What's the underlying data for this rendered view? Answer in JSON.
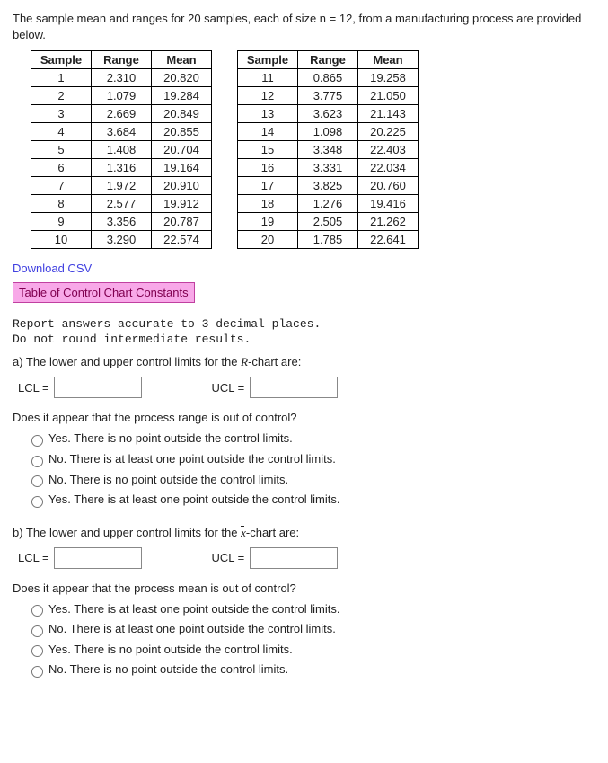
{
  "intro": "The sample mean and ranges for 20 samples, each of size n = 12, from a manufacturing process are provided below.",
  "table_headers": [
    "Sample",
    "Range",
    "Mean"
  ],
  "table_left": [
    [
      "1",
      "2.310",
      "20.820"
    ],
    [
      "2",
      "1.079",
      "19.284"
    ],
    [
      "3",
      "2.669",
      "20.849"
    ],
    [
      "4",
      "3.684",
      "20.855"
    ],
    [
      "5",
      "1.408",
      "20.704"
    ],
    [
      "6",
      "1.316",
      "19.164"
    ],
    [
      "7",
      "1.972",
      "20.910"
    ],
    [
      "8",
      "2.577",
      "19.912"
    ],
    [
      "9",
      "3.356",
      "20.787"
    ],
    [
      "10",
      "3.290",
      "22.574"
    ]
  ],
  "table_right": [
    [
      "11",
      "0.865",
      "19.258"
    ],
    [
      "12",
      "3.775",
      "21.050"
    ],
    [
      "13",
      "3.623",
      "21.143"
    ],
    [
      "14",
      "1.098",
      "20.225"
    ],
    [
      "15",
      "3.348",
      "22.403"
    ],
    [
      "16",
      "3.331",
      "22.034"
    ],
    [
      "17",
      "3.825",
      "20.760"
    ],
    [
      "18",
      "1.276",
      "19.416"
    ],
    [
      "19",
      "2.505",
      "21.262"
    ],
    [
      "20",
      "1.785",
      "22.641"
    ]
  ],
  "download_label": "Download CSV",
  "constants_label": "Table of Control Chart Constants",
  "note1": "Report answers accurate to 3 decimal places.",
  "note2": "Do not round intermediate results.",
  "partA": {
    "prompt_pre": "a) The lower and upper control limits for the ",
    "prompt_var": "R",
    "prompt_post": "-chart are:",
    "lcl_label": "LCL =",
    "ucl_label": "UCL =",
    "question": "Does it appear that the process range is out of control?",
    "options": [
      "Yes. There is no point outside the control limits.",
      "No. There is at least one point outside the control limits.",
      "No. There is no point outside the control limits.",
      "Yes. There is at least one point outside the control limits."
    ]
  },
  "partB": {
    "prompt_pre": "b) The lower and upper control limits for the ",
    "prompt_var": "x",
    "prompt_post": "-chart are:",
    "lcl_label": "LCL =",
    "ucl_label": "UCL =",
    "question": "Does it appear that the process mean is out of control?",
    "options": [
      "Yes. There is at least one point outside the control limits.",
      "No. There is at least one point outside the control limits.",
      "Yes. There is no point outside the control limits.",
      "No. There is no point outside the control limits."
    ]
  }
}
